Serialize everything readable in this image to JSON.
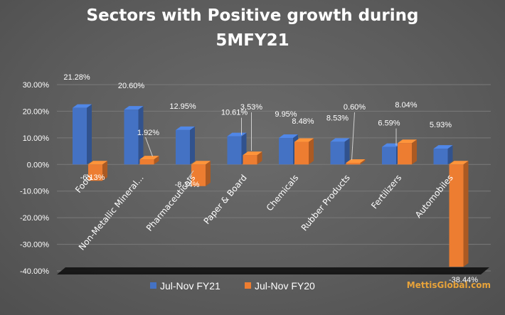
{
  "chart_data": {
    "type": "bar",
    "title_lines": [
      "Sectors with Positive growth during",
      "5MFY21"
    ],
    "categories": [
      "Food",
      "Non-Metallic Mineral...",
      "Pharmaceuticals",
      "Paper & Board",
      "Chemicals",
      "Rubber Products",
      "Fertilizers",
      "Automobiles"
    ],
    "series": [
      {
        "name": "Jul-Nov FY21",
        "values": [
          21.28,
          20.6,
          12.95,
          10.61,
          9.95,
          8.53,
          6.59,
          5.93
        ],
        "labels": [
          "21.28%",
          "20.60%",
          "12.95%",
          "10.61%",
          "9.95%",
          "8.53%",
          "6.59%",
          "5.93%"
        ]
      },
      {
        "name": "Jul-Nov FY20",
        "values": [
          -6.13,
          1.92,
          -8.14,
          3.53,
          8.48,
          0.6,
          8.04,
          -38.44
        ],
        "labels": [
          "-6.13%",
          "1.92%",
          "-8.14%",
          "3.53%",
          "8.48%",
          "0.60%",
          "8.04%",
          "-38.44%"
        ]
      }
    ],
    "y_ticks": [
      "30.00%",
      "20.00%",
      "10.00%",
      "0.00%",
      "-10.00%",
      "-20.00%",
      "-30.00%",
      "-40.00%"
    ],
    "ylim": [
      -40,
      30
    ],
    "legend_position": "bottom",
    "grid": true
  },
  "colors": {
    "series1": "#4472c4",
    "series2": "#ed7d31"
  },
  "watermark": "MettisGlobal.com"
}
